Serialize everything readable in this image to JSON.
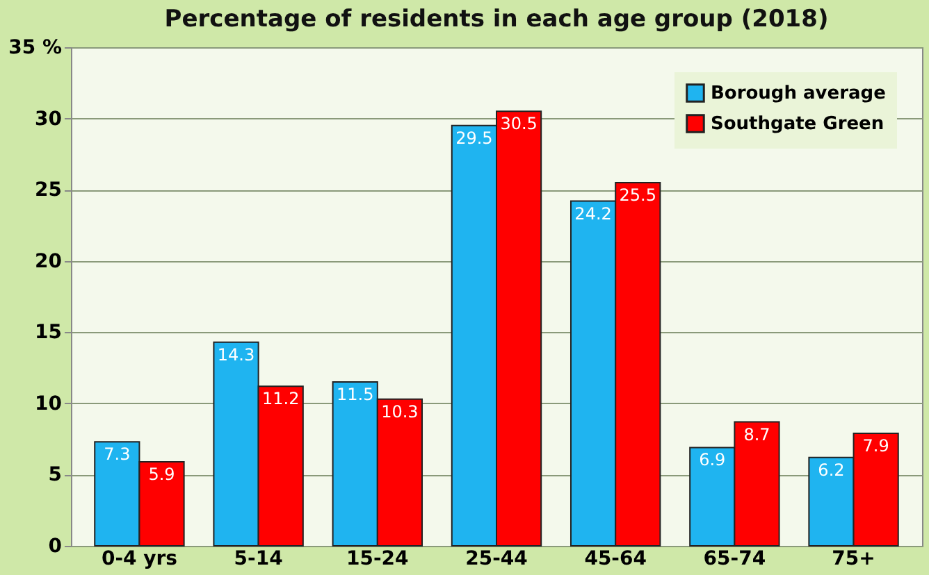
{
  "chart_data": {
    "type": "bar",
    "title": "Percentage of residents in each age group (2018)",
    "categories": [
      "0-4 yrs",
      "5-14",
      "15-24",
      "25-44",
      "45-64",
      "65-74",
      "75+"
    ],
    "series": [
      {
        "name": "Borough average",
        "color": "#1fb4f0",
        "values": [
          7.3,
          14.3,
          11.5,
          29.5,
          24.2,
          6.9,
          6.2
        ]
      },
      {
        "name": "Southgate Green",
        "color": "#ff0000",
        "values": [
          5.9,
          11.2,
          10.3,
          30.5,
          25.5,
          8.7,
          7.9
        ]
      }
    ],
    "ylim": [
      0,
      35
    ],
    "yticks": [
      0,
      5,
      10,
      15,
      20,
      25,
      30,
      {
        "value": 35,
        "label": "35 %"
      }
    ],
    "grid": "y",
    "legend": "top right",
    "data_labels": true
  }
}
